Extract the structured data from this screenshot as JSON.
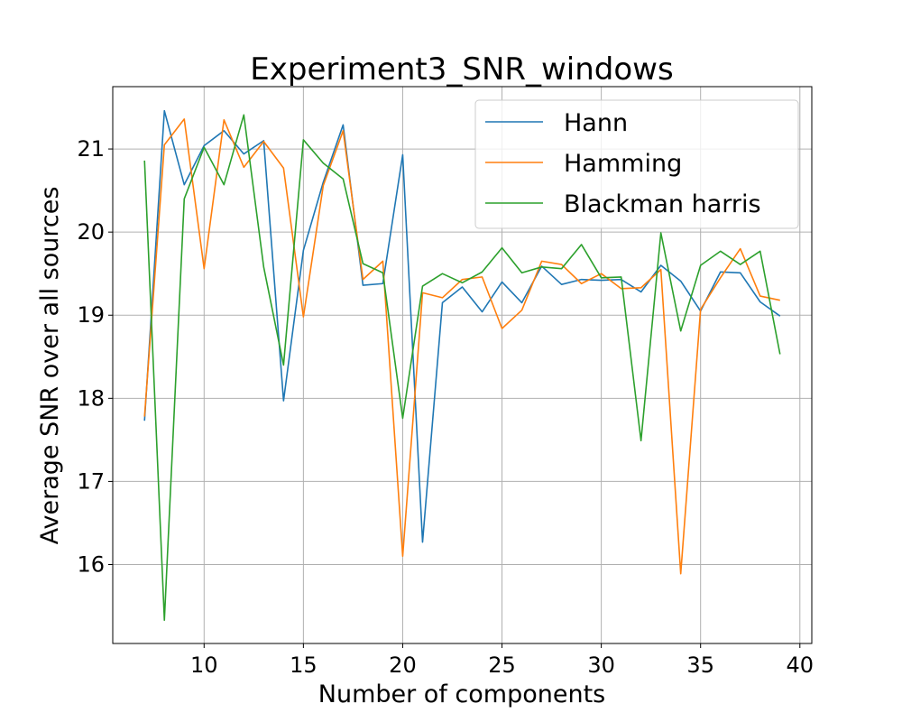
{
  "chart_data": {
    "type": "line",
    "title": "Experiment3_SNR_windows",
    "xlabel": "Number of components",
    "ylabel": "Average SNR over all sources",
    "xlim": [
      5.4,
      40.6
    ],
    "ylim": [
      15.05,
      21.75
    ],
    "xticks": [
      10,
      15,
      20,
      25,
      30,
      35,
      40
    ],
    "yticks": [
      16,
      17,
      18,
      19,
      20,
      21
    ],
    "grid": true,
    "legend_position": "top-right",
    "x": [
      7,
      8,
      9,
      10,
      11,
      12,
      13,
      14,
      15,
      16,
      17,
      18,
      19,
      20,
      21,
      22,
      23,
      24,
      25,
      26,
      27,
      28,
      29,
      30,
      31,
      32,
      33,
      34,
      35,
      36,
      37,
      38,
      39
    ],
    "series": [
      {
        "name": "Hann",
        "color": "#1f77b4",
        "values": [
          17.73,
          21.46,
          20.57,
          21.04,
          21.22,
          20.94,
          21.1,
          17.97,
          19.78,
          20.6,
          21.29,
          19.36,
          19.38,
          20.93,
          16.27,
          19.15,
          19.34,
          19.04,
          19.4,
          19.15,
          19.59,
          19.37,
          19.43,
          19.42,
          19.43,
          19.28,
          19.6,
          19.41,
          19.05,
          19.52,
          19.51,
          19.16,
          18.99
        ]
      },
      {
        "name": "Hamming",
        "color": "#ff7f0e",
        "values": [
          17.78,
          21.05,
          21.36,
          19.56,
          21.35,
          20.78,
          21.09,
          20.77,
          18.98,
          20.56,
          21.22,
          19.43,
          19.65,
          16.1,
          19.27,
          19.21,
          19.43,
          19.46,
          18.84,
          19.06,
          19.65,
          19.61,
          19.38,
          19.5,
          19.32,
          19.33,
          19.55,
          15.89,
          19.07,
          19.45,
          19.8,
          19.23,
          19.18
        ]
      },
      {
        "name": "Blackman harris",
        "color": "#2ca02c",
        "values": [
          20.86,
          15.33,
          20.4,
          21.02,
          20.57,
          21.41,
          19.58,
          18.4,
          21.11,
          20.83,
          20.64,
          19.62,
          19.51,
          17.76,
          19.35,
          19.5,
          19.39,
          19.52,
          19.81,
          19.51,
          19.58,
          19.56,
          19.85,
          19.45,
          19.46,
          17.49,
          19.99,
          18.81,
          19.6,
          19.77,
          19.61,
          19.77,
          18.53
        ]
      }
    ]
  }
}
